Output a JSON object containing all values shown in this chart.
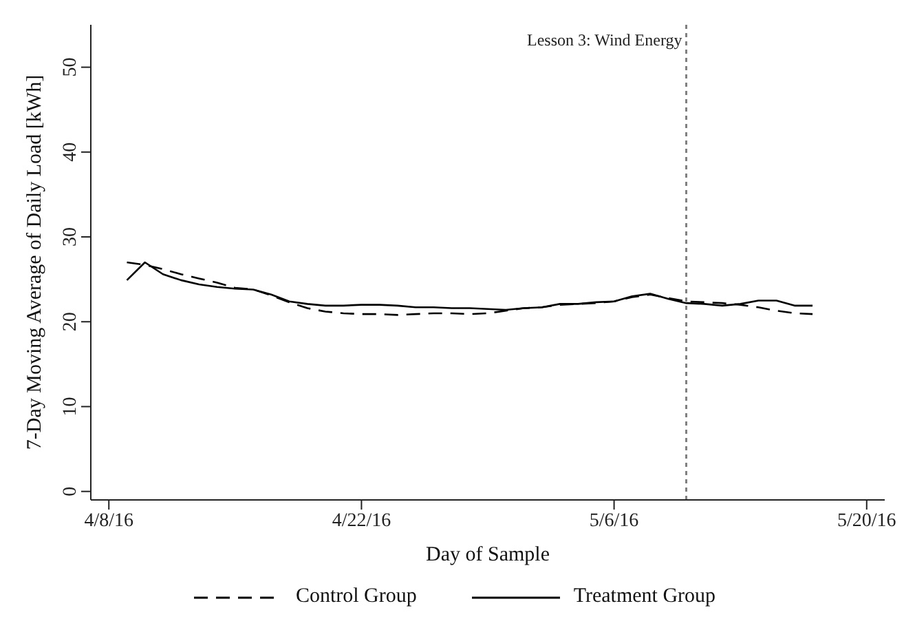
{
  "chart_data": {
    "type": "line",
    "xlabel": "Day of Sample",
    "ylabel": "7-Day Moving Average of Daily Load [kWh]",
    "x": [
      "--04-09",
      "--04-10",
      "--04-11",
      "--04-12",
      "--04-13",
      "--04-14",
      "--04-15",
      "--04-16",
      "--04-17",
      "--04-18",
      "--04-19",
      "--04-20",
      "--04-21",
      "--04-22",
      "--04-23",
      "--04-24",
      "--04-25",
      "--04-26",
      "--04-27",
      "--04-28",
      "--04-29",
      "--04-30",
      "--05-01",
      "--05-02",
      "--05-03",
      "--05-04",
      "--05-05",
      "--05-06",
      "--05-07",
      "--05-08",
      "--05-09",
      "--05-10",
      "--05-11",
      "--05-12",
      "--05-13",
      "--05-14",
      "--05-15",
      "--05-16",
      "--05-17"
    ],
    "series": [
      {
        "name": "Control Group",
        "color": "#000000",
        "line_style": "dashed",
        "values": [
          27.0,
          26.7,
          26.2,
          25.6,
          25.1,
          24.6,
          24.0,
          23.8,
          23.1,
          22.3,
          21.6,
          21.2,
          21.0,
          20.9,
          20.9,
          20.8,
          20.9,
          21.0,
          21.0,
          20.9,
          21.0,
          21.3,
          21.6,
          21.7,
          22.0,
          22.1,
          22.2,
          22.4,
          22.9,
          23.2,
          22.8,
          22.4,
          22.3,
          22.2,
          22.0,
          21.7,
          21.3,
          21.0,
          20.9
        ]
      },
      {
        "name": "Treatment Group",
        "color": "#000000",
        "line_style": "solid",
        "values": [
          24.9,
          27.0,
          25.6,
          24.9,
          24.4,
          24.1,
          23.9,
          23.8,
          23.2,
          22.4,
          22.1,
          21.9,
          21.9,
          22.0,
          22.0,
          21.9,
          21.7,
          21.7,
          21.6,
          21.6,
          21.5,
          21.4,
          21.6,
          21.7,
          22.1,
          22.1,
          22.3,
          22.4,
          23.0,
          23.3,
          22.7,
          22.2,
          22.1,
          21.9,
          22.1,
          22.5,
          22.5,
          21.9,
          21.9
        ]
      }
    ],
    "xlim": [
      "--04-07",
      "--05-21"
    ],
    "xticks": [
      {
        "value": "--04-08",
        "label": "4/8/16"
      },
      {
        "value": "--04-22",
        "label": "4/22/16"
      },
      {
        "value": "--05-06",
        "label": "5/6/16"
      },
      {
        "value": "--05-20",
        "label": "5/20/16"
      }
    ],
    "ylim": [
      -1,
      55
    ],
    "yticks": [
      0,
      10,
      20,
      30,
      40,
      50
    ],
    "ref_lines": [
      {
        "axis": "x",
        "value": "--05-10",
        "label": "Lesson 3: Wind Energy",
        "color": "#808080",
        "line_style": "dotted"
      }
    ],
    "grid": false,
    "legend": "bottom",
    "marker": "none"
  }
}
